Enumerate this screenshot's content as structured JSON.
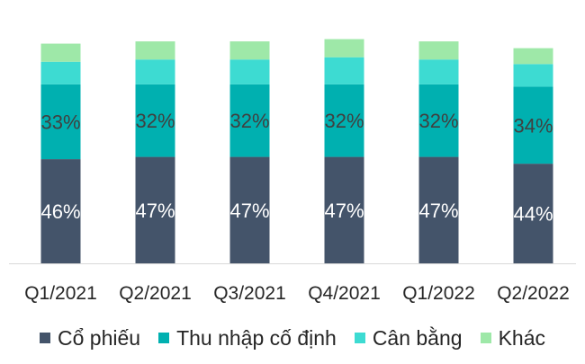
{
  "chart_data": {
    "type": "bar",
    "stacked": true,
    "categories": [
      "Q1/2021",
      "Q2/2021",
      "Q3/2021",
      "Q4/2021",
      "Q1/2022",
      "Q2/2022"
    ],
    "series": [
      {
        "name": "Cổ phiếu",
        "color": "#44546a",
        "values": [
          46,
          47,
          47,
          47,
          47,
          44
        ],
        "labels": [
          "46%",
          "47%",
          "47%",
          "47%",
          "47%",
          "44%"
        ],
        "label_color": "#ffffff"
      },
      {
        "name": "Thu nhập cố định",
        "color": "#00b0b0",
        "values": [
          33,
          32,
          32,
          32,
          32,
          34
        ],
        "labels": [
          "33%",
          "32%",
          "32%",
          "32%",
          "32%",
          "34%"
        ],
        "label_color": "#404040"
      },
      {
        "name": "Cân bằng",
        "color": "#3ddbd2",
        "values": [
          10,
          11,
          11,
          12,
          11,
          10
        ],
        "labels": []
      },
      {
        "name": "Khác",
        "color": "#9ee8a8",
        "values": [
          8,
          8,
          8,
          8,
          8,
          7
        ],
        "labels": []
      }
    ],
    "ylim": [
      0,
      100
    ],
    "grid": false,
    "legend_position": "bottom"
  }
}
